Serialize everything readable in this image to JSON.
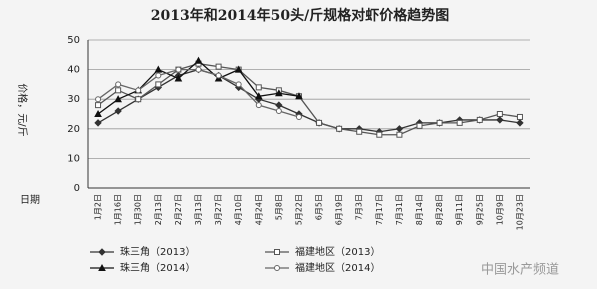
{
  "chart_data": {
    "type": "line",
    "title": "2013年和2014年50头/斤规格对虾价格趋势图",
    "y_label": "价格，元/斤",
    "x_label": "日期",
    "watermark": "中国水产频道",
    "categories": [
      "1月2日",
      "1月16日",
      "1月30日",
      "2月13日",
      "2月27日",
      "3月13日",
      "3月27日",
      "4月10日",
      "4月24日",
      "5月8日",
      "5月22日",
      "6月5日",
      "6月19日",
      "7月3日",
      "7月17日",
      "7月31日",
      "8月14日",
      "8月28日",
      "9月11日",
      "9月25日",
      "10月9日",
      "10月23日"
    ],
    "series": [
      {
        "name": "珠三角（2013）",
        "color": "#333333",
        "marker": "diamond",
        "values": [
          22,
          26,
          30,
          34,
          38,
          40,
          38,
          34,
          30,
          28,
          25,
          22,
          20,
          20,
          19,
          20,
          22,
          22,
          23,
          23,
          23,
          22
        ]
      },
      {
        "name": "福建地区（2013）",
        "color": "#555555",
        "marker": "square",
        "values": [
          28,
          33,
          30,
          35,
          40,
          42,
          41,
          40,
          34,
          33,
          31,
          22,
          20,
          19,
          18,
          18,
          21,
          22,
          22,
          23,
          25,
          24
        ]
      },
      {
        "name": "珠三角（2014）",
        "color": "#111111",
        "marker": "triangle",
        "values": [
          25,
          30,
          33,
          40,
          37,
          43,
          37,
          40,
          31,
          32,
          31,
          null,
          null,
          null,
          null,
          null,
          null,
          null,
          null,
          null,
          null,
          null
        ]
      },
      {
        "name": "福建地区（2014）",
        "color": "#666666",
        "marker": "circle",
        "values": [
          30,
          35,
          33,
          38,
          40,
          40,
          38,
          35,
          28,
          26,
          24,
          null,
          null,
          null,
          null,
          null,
          null,
          null,
          null,
          null,
          null,
          null
        ]
      }
    ],
    "ylim": [
      0,
      50
    ],
    "yticks": [
      0,
      10,
      20,
      30,
      40,
      50
    ],
    "grid": true
  }
}
